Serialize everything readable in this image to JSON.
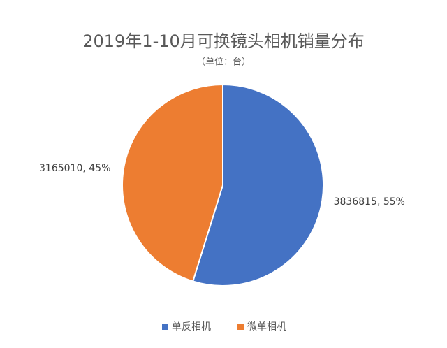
{
  "chart_data": {
    "type": "pie",
    "title": "2019年1-10月可换镜头相机销量分布",
    "subtitle": "（单位：台）",
    "categories": [
      "单反相机",
      "微单相机"
    ],
    "values": [
      3836815,
      3165010
    ],
    "value_labels": [
      "3836815, 55%",
      "3165010, 45%"
    ],
    "colors": [
      "#4472c4",
      "#ed7d31"
    ],
    "legend": "bottom"
  }
}
